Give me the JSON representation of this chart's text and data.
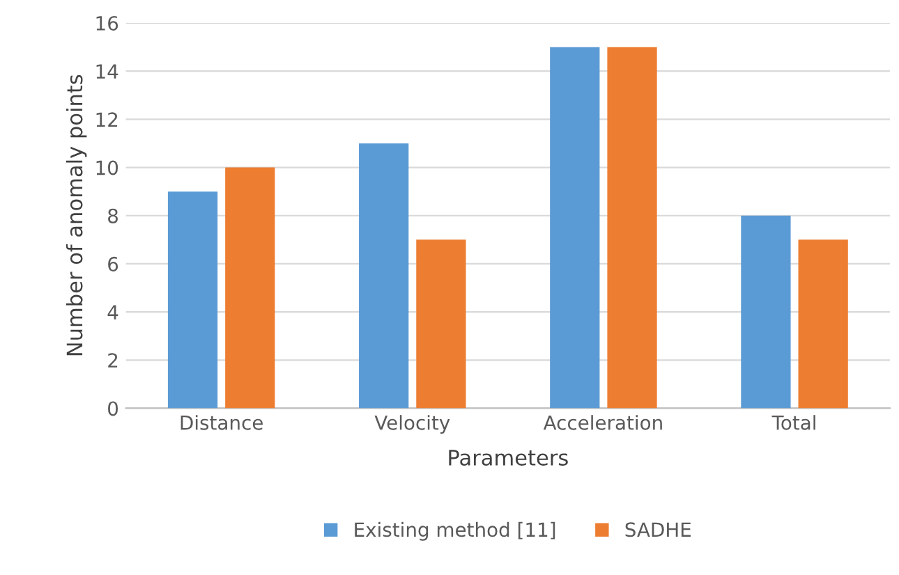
{
  "chart_data": {
    "type": "bar",
    "xlabel": "Parameters",
    "ylabel": "Number of anomaly points",
    "categories": [
      "Distance",
      "Velocity",
      "Acceleration",
      "Total"
    ],
    "series": [
      {
        "name": "Existing method [11]",
        "color": "#5b9bd5",
        "values": [
          9,
          11,
          15,
          8
        ]
      },
      {
        "name": "SADHE",
        "color": "#ed7d31",
        "values": [
          10,
          7,
          15,
          7
        ]
      }
    ],
    "ylim": [
      0,
      16
    ],
    "yticks": [
      0,
      2,
      4,
      6,
      8,
      10,
      12,
      14,
      16
    ],
    "grid": "y",
    "legend": "bottom"
  }
}
